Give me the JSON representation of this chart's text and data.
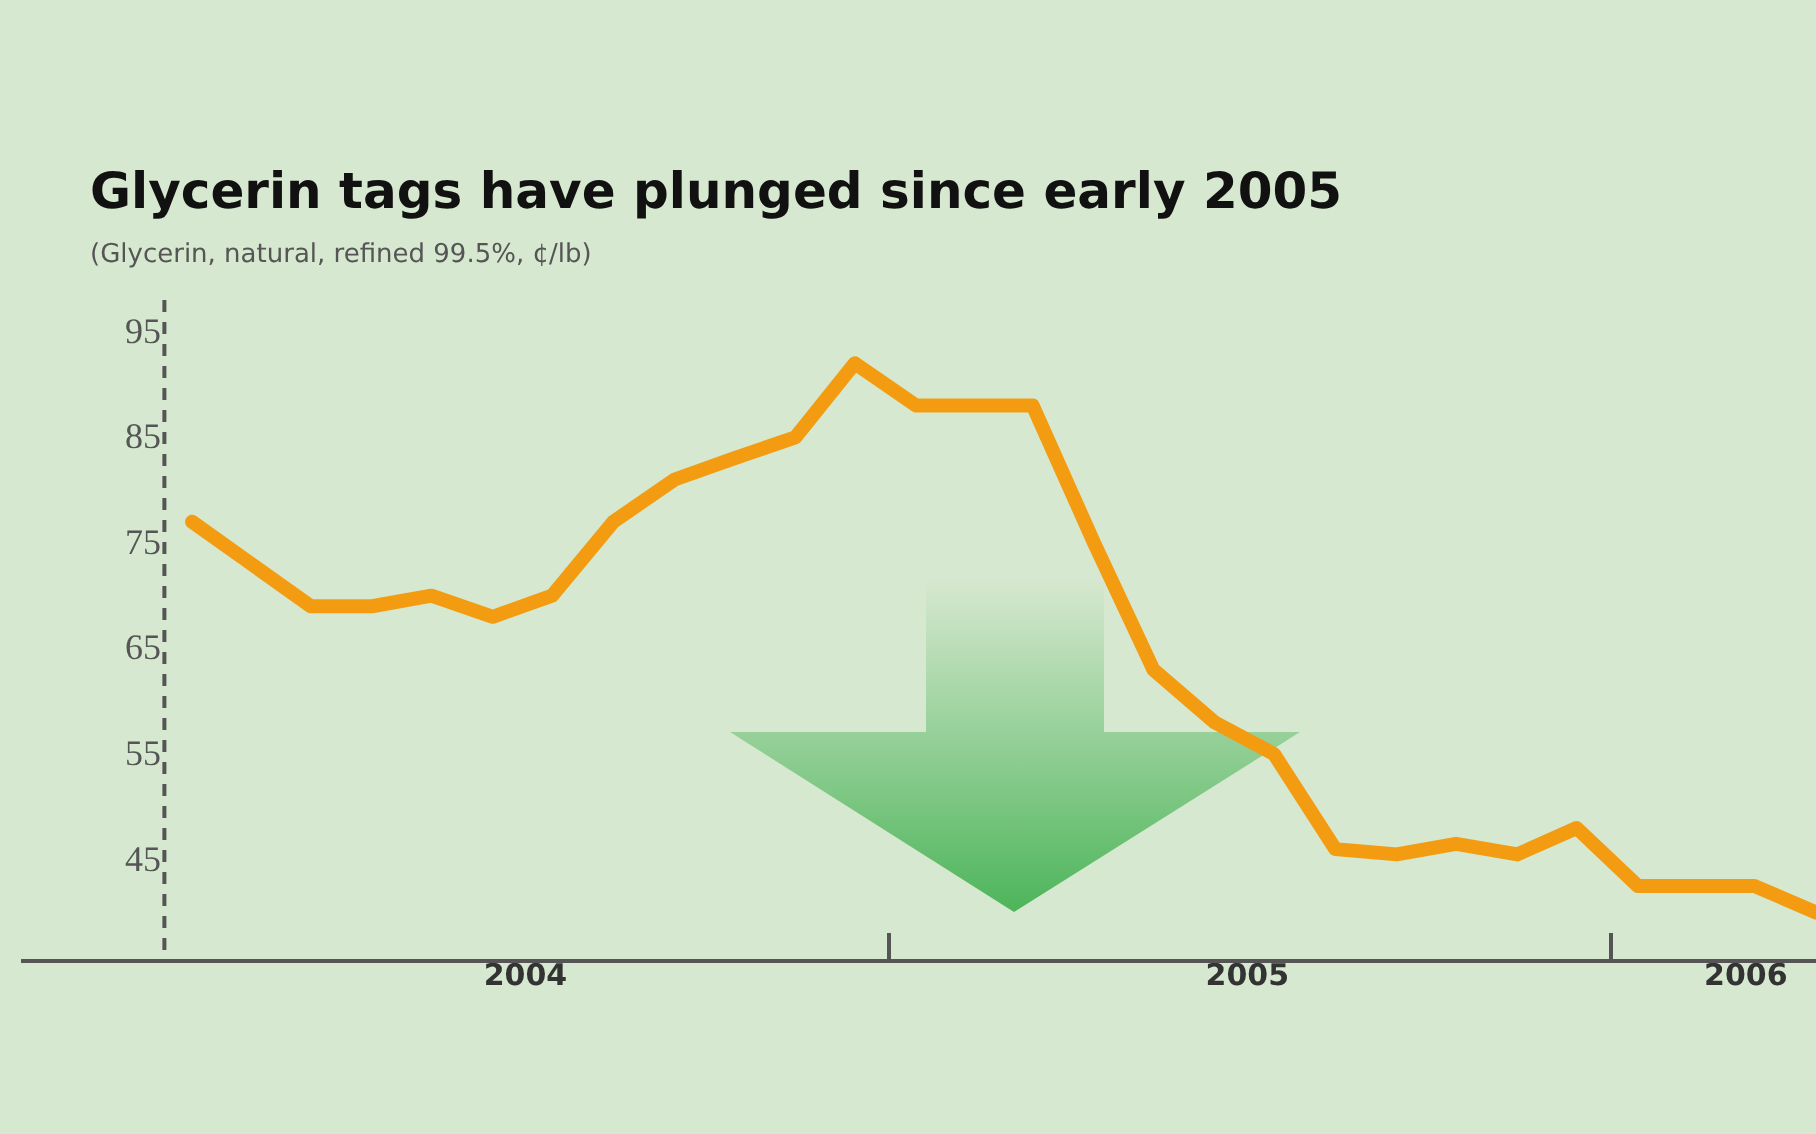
{
  "chart_data": {
    "type": "line",
    "title": "Glycerin tags have plunged since early 2005",
    "subtitle": "(Glycerin, natural, refined 99.5%, ¢/lb)",
    "x": [
      "2004-01-15",
      "2004-03-15",
      "2004-04-15",
      "2004-05-15",
      "2004-06-15",
      "2004-07-15",
      "2004-08-15",
      "2004-09-15",
      "2004-10-15",
      "2004-11-15",
      "2004-12-15",
      "2005-01-15",
      "2005-03-15",
      "2005-04-15",
      "2005-05-15",
      "2005-06-15",
      "2005-07-15",
      "2005-08-15",
      "2005-09-15",
      "2005-10-15",
      "2005-11-15",
      "2005-12-15",
      "2006-01-15",
      "2006-03-15",
      "2006-04-15"
    ],
    "series": [
      {
        "color": "#f39c12",
        "values": [
          77,
          69,
          69,
          70,
          68,
          70,
          77,
          81,
          83,
          85,
          92,
          88,
          88,
          75,
          63,
          58,
          55,
          46,
          45.5,
          46.5,
          45.5,
          48,
          42.5,
          42.5,
          40
        ]
      }
    ],
    "xlim": [
      "2003-10-20",
      "2006-04-15"
    ],
    "xticks": [
      {
        "value": "2004-07-01",
        "label": "2004"
      },
      {
        "value": "2005-01-01",
        "label": null
      },
      {
        "value": "2005-07-01",
        "label": "2005"
      },
      {
        "value": "2006-01-01",
        "label": null
      },
      {
        "value": "2006-03-10",
        "label": "2006"
      }
    ],
    "ylim": [
      35.5,
      98
    ],
    "yticks": [
      45,
      55,
      65,
      75,
      85,
      95
    ],
    "grid": false,
    "line_style": "solid",
    "ref_lines": [
      {
        "axis": "x",
        "value": "2004-01-01",
        "color": "#555555",
        "line_style": "dashed"
      }
    ]
  }
}
